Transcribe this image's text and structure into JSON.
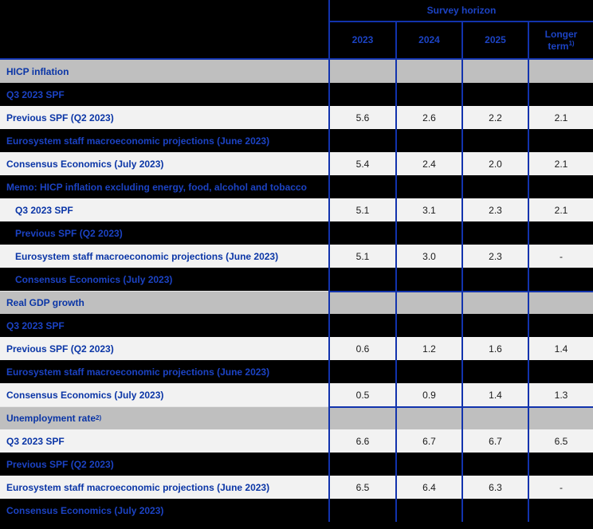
{
  "table": {
    "header": {
      "survey_horizon": "Survey horizon",
      "columns": [
        {
          "label": "2023"
        },
        {
          "label": "2024"
        },
        {
          "label": "2025"
        },
        {
          "label": "Longer term",
          "sup": "1)"
        }
      ]
    },
    "rows": [
      {
        "label": "HICP inflation",
        "variant": "section"
      },
      {
        "label": "Q3 2023 SPF",
        "variant": "dark"
      },
      {
        "label": "Previous SPF (Q2 2023)",
        "variant": "light",
        "values": [
          "5.6",
          "2.6",
          "2.2",
          "2.1"
        ]
      },
      {
        "label": "Eurosystem staff macroeconomic projections (June 2023)",
        "variant": "dark"
      },
      {
        "label": "Consensus Economics (July 2023)",
        "variant": "light",
        "values": [
          "5.4",
          "2.4",
          "2.0",
          "2.1"
        ]
      },
      {
        "label": "Memo: HICP inflation excluding energy, food, alcohol and tobacco",
        "variant": "dark"
      },
      {
        "label": "Q3 2023 SPF",
        "variant": "light",
        "indent": true,
        "values": [
          "5.1",
          "3.1",
          "2.3",
          "2.1"
        ]
      },
      {
        "label": "Previous SPF (Q2 2023)",
        "variant": "dark",
        "indent": true
      },
      {
        "label": "Eurosystem staff macroeconomic projections (June 2023)",
        "variant": "light",
        "indent": true,
        "values": [
          "5.1",
          "3.0",
          "2.3",
          "-"
        ]
      },
      {
        "label": "Consensus Economics (July 2023)",
        "variant": "dark",
        "indent": true
      },
      {
        "label": "Real GDP growth",
        "variant": "section"
      },
      {
        "label": "Q3 2023 SPF",
        "variant": "dark"
      },
      {
        "label": "Previous SPF (Q2 2023)",
        "variant": "light",
        "values": [
          "0.6",
          "1.2",
          "1.6",
          "1.4"
        ]
      },
      {
        "label": "Eurosystem staff macroeconomic projections (June 2023)",
        "variant": "dark"
      },
      {
        "label": "Consensus Economics (July 2023)",
        "variant": "light",
        "values": [
          "0.5",
          "0.9",
          "1.4",
          "1.3"
        ]
      },
      {
        "label": "Unemployment rate",
        "sup": "2)",
        "variant": "section"
      },
      {
        "label": "Q3 2023 SPF",
        "variant": "light",
        "values": [
          "6.6",
          "6.7",
          "6.7",
          "6.5"
        ]
      },
      {
        "label": "Previous SPF (Q2 2023)",
        "variant": "dark"
      },
      {
        "label": "Eurosystem staff macroeconomic projections (June 2023)",
        "variant": "light",
        "values": [
          "6.5",
          "6.4",
          "6.3",
          "-"
        ]
      },
      {
        "label": "Consensus Economics (July 2023)",
        "variant": "dark"
      }
    ],
    "colors": {
      "background": "#000000",
      "section_row_bg": "#BFBFBF",
      "light_row_bg": "#F2F2F2",
      "grid_line_blue": "#1233AD",
      "label_blue": "#0A35A6",
      "label_blue_on_dark": "#1C43C4",
      "value_text": "#1A1A1A"
    }
  }
}
